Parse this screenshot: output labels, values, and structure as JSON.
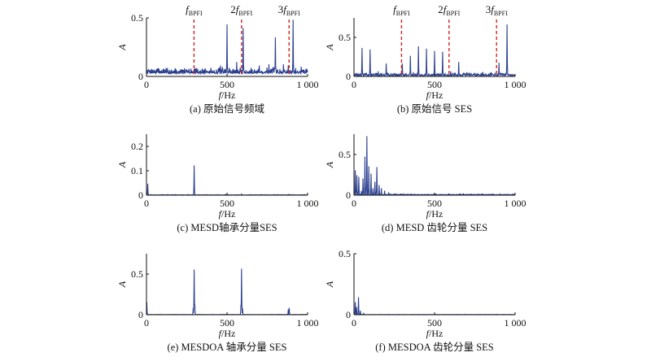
{
  "figure": {
    "line_color": "#2b3f8f",
    "marker_color": "#d42020",
    "marker_labels": [
      {
        "prefix": "",
        "main": "f",
        "sub": "BPFI"
      },
      {
        "prefix": "2",
        "main": "f",
        "sub": "BPFI"
      },
      {
        "prefix": "3",
        "main": "f",
        "sub": "BPFI"
      }
    ]
  },
  "chart_data": [
    {
      "id": "a",
      "type": "line",
      "caption": "(a) 原始信号频域",
      "xlabel": {
        "main": "f",
        "rest": "/Hz"
      },
      "ylabel": "A",
      "xlim": [
        0,
        1000
      ],
      "ylim": [
        0,
        0.5
      ],
      "xticks": [
        {
          "v": 0,
          "t": "0"
        },
        {
          "v": 500,
          "t": "500"
        },
        {
          "v": 1000,
          "t": "1 000"
        }
      ],
      "yticks": [
        {
          "v": 0,
          "t": "0"
        },
        {
          "v": 0.5,
          "t": "0.5"
        }
      ],
      "noise": {
        "base": 0.025,
        "amp": 0.03,
        "seed": 7
      },
      "markers": [
        295,
        590,
        885
      ],
      "peaks": [
        [
          30,
          0.06
        ],
        [
          70,
          0.05
        ],
        [
          250,
          0.05
        ],
        [
          295,
          0.06
        ],
        [
          350,
          0.05
        ],
        [
          400,
          0.07
        ],
        [
          460,
          0.09
        ],
        [
          500,
          0.44
        ],
        [
          560,
          0.12
        ],
        [
          600,
          0.41
        ],
        [
          650,
          0.07
        ],
        [
          700,
          0.09
        ],
        [
          760,
          0.1
        ],
        [
          800,
          0.33
        ],
        [
          850,
          0.1
        ],
        [
          880,
          0.09
        ],
        [
          910,
          0.48
        ],
        [
          960,
          0.08
        ],
        [
          990,
          0.06
        ]
      ]
    },
    {
      "id": "b",
      "type": "line",
      "caption": "(b) 原始信号 SES",
      "xlabel": {
        "main": "f",
        "rest": "/Hz"
      },
      "ylabel": "A",
      "xlim": [
        0,
        1000
      ],
      "ylim": [
        0,
        0.75
      ],
      "xticks": [
        {
          "v": 0,
          "t": "0"
        },
        {
          "v": 500,
          "t": "500"
        },
        {
          "v": 1000,
          "t": "1 000"
        }
      ],
      "yticks": [
        {
          "v": 0,
          "t": "0"
        },
        {
          "v": 0.5,
          "t": "0.5"
        }
      ],
      "noise": {
        "base": 0.01,
        "amp": 0.02,
        "seed": 13
      },
      "markers": [
        295,
        590,
        885
      ],
      "peaks": [
        [
          50,
          0.36
        ],
        [
          100,
          0.34
        ],
        [
          150,
          0.06
        ],
        [
          200,
          0.16
        ],
        [
          300,
          0.16
        ],
        [
          350,
          0.26
        ],
        [
          400,
          0.38
        ],
        [
          450,
          0.35
        ],
        [
          500,
          0.32
        ],
        [
          550,
          0.31
        ],
        [
          600,
          0.06
        ],
        [
          650,
          0.18
        ],
        [
          700,
          0.05
        ],
        [
          800,
          0.05
        ],
        [
          850,
          0.05
        ],
        [
          900,
          0.17
        ],
        [
          950,
          0.66
        ]
      ]
    },
    {
      "id": "c",
      "type": "line",
      "caption": "(c) MESD轴承分量SES",
      "xlabel": {
        "main": "f",
        "rest": "/Hz"
      },
      "ylabel": "A",
      "xlim": [
        0,
        1000
      ],
      "ylim": [
        0,
        0.25
      ],
      "xticks": [
        {
          "v": 0,
          "t": "0"
        },
        {
          "v": 500,
          "t": "500"
        },
        {
          "v": 1000,
          "t": "1 000"
        }
      ],
      "yticks": [
        {
          "v": 0,
          "t": "0"
        },
        {
          "v": 0.1,
          "t": "0.1"
        },
        {
          "v": 0.2,
          "t": "0.2"
        }
      ],
      "noise": {
        "base": 0.0005,
        "amp": 0.001,
        "seed": 3
      },
      "markers": [],
      "peaks": [
        [
          8,
          0.045
        ],
        [
          295,
          0.12
        ],
        [
          590,
          0.004
        ],
        [
          885,
          0.003
        ]
      ]
    },
    {
      "id": "d",
      "type": "line",
      "caption": "(d) MESD 齿轮分量 SES",
      "xlabel": {
        "main": "f",
        "rest": "/Hz"
      },
      "ylabel": "A",
      "xlim": [
        0,
        1000
      ],
      "ylim": [
        0,
        0.75
      ],
      "xticks": [
        {
          "v": 0,
          "t": "0"
        },
        {
          "v": 500,
          "t": "500"
        },
        {
          "v": 1000,
          "t": "1 000"
        }
      ],
      "yticks": [
        {
          "v": 0,
          "t": "0"
        },
        {
          "v": 0.5,
          "t": "0.5"
        }
      ],
      "noise": {
        "base": 0.003,
        "amp": 0.006,
        "seed": 21
      },
      "markers": [],
      "peaks": [
        [
          8,
          0.3
        ],
        [
          18,
          0.24
        ],
        [
          30,
          0.22
        ],
        [
          45,
          0.05
        ],
        [
          55,
          0.2
        ],
        [
          68,
          0.47
        ],
        [
          80,
          0.72
        ],
        [
          92,
          0.35
        ],
        [
          105,
          0.26
        ],
        [
          118,
          0.08
        ],
        [
          130,
          0.16
        ],
        [
          142,
          0.34
        ],
        [
          155,
          0.12
        ],
        [
          170,
          0.08
        ],
        [
          190,
          0.05
        ],
        [
          215,
          0.03
        ],
        [
          250,
          0.015
        ]
      ]
    },
    {
      "id": "e",
      "type": "line",
      "caption": "(e) MESDOA 轴承分量 SES",
      "xlabel": {
        "main": "f",
        "rest": "/Hz"
      },
      "ylabel": "A",
      "xlim": [
        0,
        1000
      ],
      "ylim": [
        0,
        0.75
      ],
      "xticks": [
        {
          "v": 0,
          "t": "0"
        },
        {
          "v": 500,
          "t": "500"
        },
        {
          "v": 1000,
          "t": "1 000"
        }
      ],
      "yticks": [
        {
          "v": 0,
          "t": "0"
        },
        {
          "v": 0.5,
          "t": "0.5"
        }
      ],
      "noise": {
        "base": 0.0008,
        "amp": 0.0015,
        "seed": 5
      },
      "markers": [],
      "peaks": [
        [
          2,
          0.15
        ],
        [
          290,
          0.08
        ],
        [
          295,
          0.55
        ],
        [
          300,
          0.12
        ],
        [
          585,
          0.1
        ],
        [
          590,
          0.56
        ],
        [
          595,
          0.08
        ],
        [
          880,
          0.06
        ],
        [
          885,
          0.08
        ]
      ]
    },
    {
      "id": "f",
      "type": "line",
      "caption": "(f) MESDOA 齿轮分量 SES",
      "xlabel": {
        "main": "f",
        "rest": "/Hz"
      },
      "ylabel": "A",
      "xlim": [
        0,
        1000
      ],
      "ylim": [
        0,
        0.5
      ],
      "xticks": [
        {
          "v": 0,
          "t": "0"
        },
        {
          "v": 500,
          "t": "500"
        },
        {
          "v": 1000,
          "t": "1 000"
        }
      ],
      "yticks": [
        {
          "v": 0,
          "t": "0"
        },
        {
          "v": 0.5,
          "t": "0.5"
        }
      ],
      "noise": {
        "base": 0.0005,
        "amp": 0.001,
        "seed": 9
      },
      "markers": [],
      "peaks": [
        [
          8,
          0.1
        ],
        [
          16,
          0.06
        ],
        [
          28,
          0.14
        ],
        [
          40,
          0.03
        ],
        [
          60,
          0.01
        ]
      ]
    }
  ]
}
